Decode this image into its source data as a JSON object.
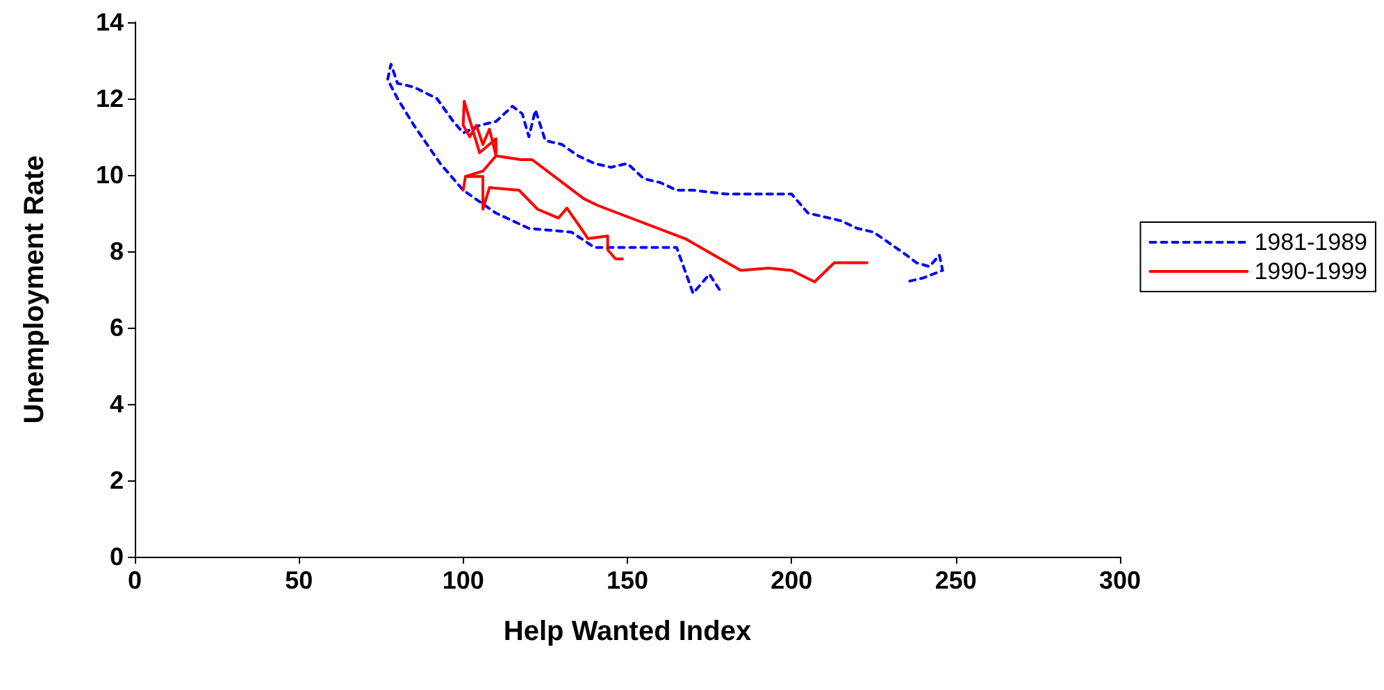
{
  "chart_data": {
    "type": "line",
    "xlabel": "Help Wanted Index",
    "ylabel": "Unemployment Rate",
    "xlim": [
      0,
      300
    ],
    "xticks": [
      0,
      50,
      100,
      150,
      200,
      250,
      300
    ],
    "ylim": [
      0,
      14
    ],
    "yticks": [
      0,
      2,
      4,
      6,
      8,
      10,
      12,
      14
    ],
    "grid": false,
    "legend": "right",
    "marker": "none",
    "series": [
      {
        "name": "1981-1989",
        "color": "#0000ff",
        "line_style": "dashed",
        "x": [
          178,
          175,
          170,
          165,
          150,
          140,
          133,
          120,
          110,
          100,
          93,
          85,
          80,
          77,
          78,
          80,
          85,
          92,
          97,
          100,
          105,
          110,
          115,
          118,
          120,
          122,
          125,
          130,
          135,
          140,
          145,
          150,
          155,
          160,
          165,
          170,
          180,
          200,
          205,
          210,
          215,
          220,
          225,
          230,
          235,
          238,
          242,
          245,
          246,
          240,
          235
        ],
        "values": [
          7.0,
          7.4,
          6.9,
          8.1,
          8.1,
          8.1,
          8.5,
          8.6,
          9.0,
          9.6,
          10.3,
          11.3,
          12.0,
          12.5,
          12.9,
          12.4,
          12.3,
          12.0,
          11.4,
          11.1,
          11.3,
          11.4,
          11.8,
          11.6,
          11.0,
          11.7,
          10.9,
          10.8,
          10.5,
          10.3,
          10.2,
          10.3,
          9.9,
          9.8,
          9.6,
          9.6,
          9.5,
          9.5,
          9.0,
          8.9,
          8.8,
          8.6,
          8.5,
          8.2,
          7.9,
          7.7,
          7.6,
          7.9,
          7.5,
          7.3,
          7.2
        ]
      },
      {
        "name": "1990-1999",
        "color": "#ff0000",
        "line_style": "solid",
        "x": [
          223,
          213,
          207,
          200,
          193,
          184.5,
          167.6,
          141,
          136.7,
          121,
          117.6,
          110,
          110,
          105,
          100.3,
          100,
          102,
          104,
          106,
          108,
          110,
          106,
          100.7,
          100,
          100.7,
          106,
          106,
          108,
          117,
          122.7,
          129,
          131.6,
          136.7,
          138,
          144,
          144,
          146.4,
          148.5
        ],
        "values": [
          7.7,
          7.7,
          7.2,
          7.5,
          7.56,
          7.5,
          8.33,
          9.2,
          9.38,
          10.4,
          10.4,
          10.5,
          10.95,
          10.58,
          11.93,
          11.3,
          11.0,
          11.3,
          10.8,
          11.2,
          10.5,
          10.1,
          9.96,
          9.6,
          9.96,
          9.96,
          9.1,
          9.67,
          9.6,
          9.1,
          8.87,
          9.13,
          8.5,
          8.33,
          8.4,
          8.04,
          7.8,
          7.8
        ]
      }
    ]
  }
}
